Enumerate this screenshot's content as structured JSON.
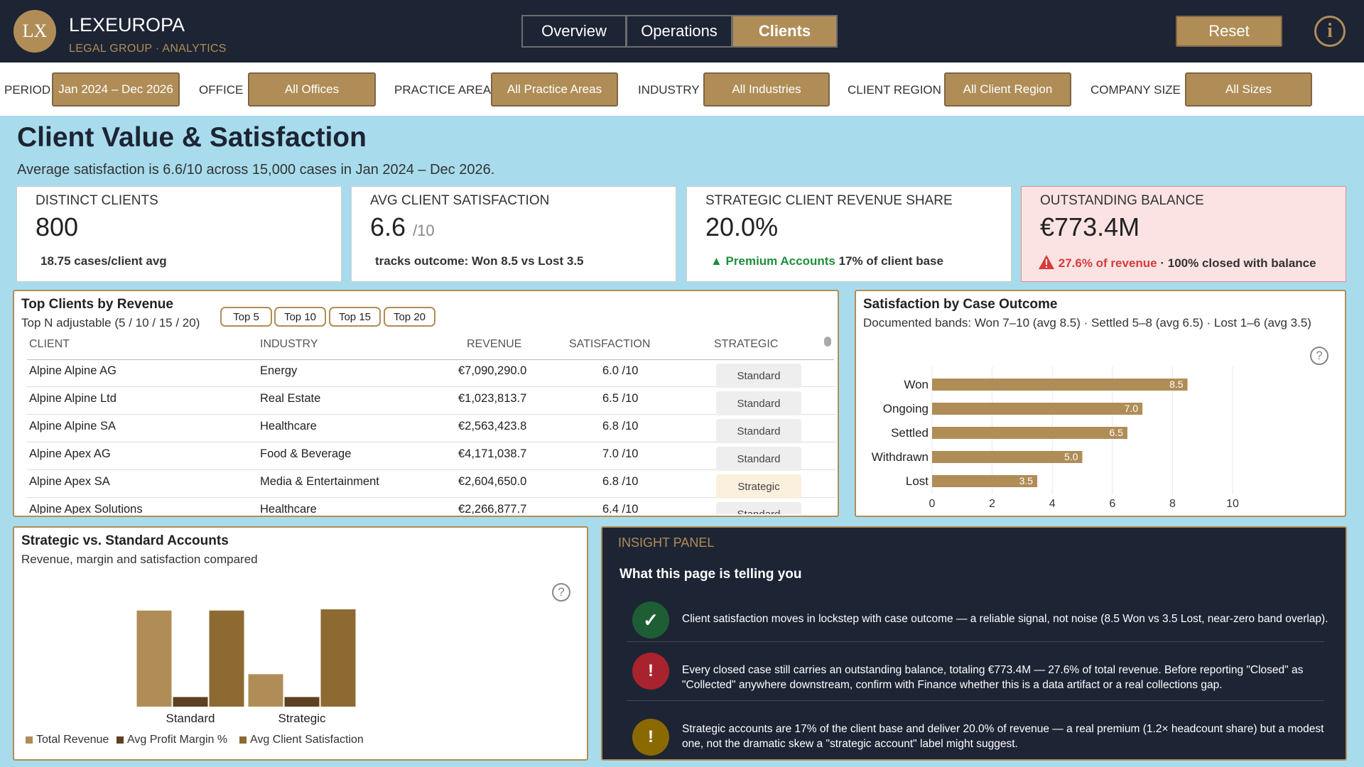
{
  "header": {
    "logo_text": "LX",
    "brand": "LEXEUROPA",
    "brand_sub": "LEGAL GROUP · ANALYTICS",
    "tabs": [
      {
        "label": "Overview"
      },
      {
        "label": "Operations"
      },
      {
        "label": "Clients",
        "active": true
      }
    ],
    "reset_label": "Reset",
    "info_glyph": "i"
  },
  "filters": [
    {
      "label": "PERIOD",
      "value": "Jan 2024 – Dec 2026"
    },
    {
      "label": "OFFICE",
      "value": "All Offices"
    },
    {
      "label": "PRACTICE AREA",
      "value": "All Practice Areas"
    },
    {
      "label": "INDUSTRY",
      "value": "All Industries"
    },
    {
      "label": "CLIENT REGION",
      "value": "All Client Region"
    },
    {
      "label": "COMPANY SIZE",
      "value": "All Sizes"
    }
  ],
  "page": {
    "title": "Client Value & Satisfaction",
    "subtitle": "Average satisfaction is 6.6/10 across 15,000 cases in Jan 2024 – Dec 2026."
  },
  "kpis": [
    {
      "label": "DISTINCT CLIENTS",
      "value": "800",
      "unit": "",
      "note": "18.75 cases/client avg"
    },
    {
      "label": "AVG CLIENT SATISFACTION",
      "value": "6.6",
      "unit": "/10",
      "note": "tracks outcome: Won 8.5 vs Lost 3.5"
    },
    {
      "label": "STRATEGIC CLIENT REVENUE SHARE",
      "value": "20.0%",
      "unit": "",
      "note_highlight": "▲ Premium Accounts",
      "note": "17% of client base"
    },
    {
      "label": "OUTSTANDING BALANCE",
      "value": "€773.4M",
      "unit": "",
      "note_highlight": "27.6% of revenue",
      "note": "· 100% closed with balance",
      "alert": true
    }
  ],
  "top_clients": {
    "title": "Top Clients by Revenue",
    "subtitle": "Top N adjustable (5 / 10 / 15 / 20)",
    "topn": [
      "Top 5",
      "Top 10",
      "Top 15",
      "Top 20"
    ],
    "columns": [
      "CLIENT",
      "INDUSTRY",
      "REVENUE",
      "SATISFACTION",
      "STRATEGIC"
    ],
    "rows": [
      {
        "client": "Alpine Alpine AG",
        "industry": "Energy",
        "revenue": "€7,090,290.0",
        "satisfaction": "6.0 /10",
        "strategic": "Standard"
      },
      {
        "client": "Alpine Alpine Ltd",
        "industry": "Real Estate",
        "revenue": "€1,023,813.7",
        "satisfaction": "6.5 /10",
        "strategic": "Standard"
      },
      {
        "client": "Alpine Alpine SA",
        "industry": "Healthcare",
        "revenue": "€2,563,423.8",
        "satisfaction": "6.8 /10",
        "strategic": "Standard"
      },
      {
        "client": "Alpine Apex AG",
        "industry": "Food & Beverage",
        "revenue": "€4,171,038.7",
        "satisfaction": "7.0 /10",
        "strategic": "Standard"
      },
      {
        "client": "Alpine Apex SA",
        "industry": "Media & Entertainment",
        "revenue": "€2,604,650.0",
        "satisfaction": "6.8 /10",
        "strategic": "Strategic"
      },
      {
        "client": "Alpine Apex Solutions",
        "industry": "Healthcare",
        "revenue": "€2,266,877.7",
        "satisfaction": "6.4 /10",
        "strategic": "Standard"
      }
    ]
  },
  "satisfaction_panel": {
    "title": "Satisfaction by Case Outcome",
    "subtitle": "Documented bands: Won 7–10 (avg 8.5) · Settled 5–8 (avg 6.5) · Lost 1–6 (avg 3.5)",
    "help_glyph": "?"
  },
  "strategic_panel": {
    "title": "Strategic vs. Standard Accounts",
    "subtitle": "Revenue, margin and satisfaction compared",
    "help_glyph": "?"
  },
  "chart_data": [
    {
      "type": "bar",
      "orientation": "horizontal",
      "categories": [
        "Won",
        "Ongoing",
        "Settled",
        "Withdrawn",
        "Lost"
      ],
      "values": [
        8.5,
        7.0,
        6.5,
        5.0,
        3.5
      ],
      "xlim": [
        0,
        10
      ],
      "xticks": [
        "0",
        "2",
        "4",
        "6",
        "8",
        "10"
      ],
      "color": "#b08d57",
      "data_labels": true
    },
    {
      "type": "bar",
      "categories": [
        "Standard",
        "Strategic"
      ],
      "series": [
        {
          "name": "Total Revenue",
          "values": [
            0.8,
            0.27
          ],
          "color": "#b08d57"
        },
        {
          "name": "Avg Profit Margin %",
          "values": [
            0.08,
            0.08
          ],
          "color": "#5e4120"
        },
        {
          "name": "Avg Client Satisfaction",
          "values": [
            0.8,
            0.81
          ],
          "color": "#8c6a32"
        }
      ],
      "y_axis_visible": false
    }
  ],
  "insight": {
    "label": "INSIGHT PANEL",
    "heading": "What this page is telling you",
    "items": [
      {
        "icon": "check-icon",
        "glyph": "✓",
        "color": "#1e5e34",
        "text": "Client satisfaction moves in lockstep with case outcome — a reliable signal, not noise (8.5 Won vs 3.5 Lost, near-zero band overlap)."
      },
      {
        "icon": "alert-icon",
        "glyph": "!",
        "color": "#a8232d",
        "text": "Every closed case still carries an outstanding balance, totaling €773.4M — 27.6% of total revenue. Before reporting \"Closed\" as \"Collected\" anywhere downstream, confirm with Finance whether this is a data artifact or a real collections gap."
      },
      {
        "icon": "info-alert-icon",
        "glyph": "!",
        "color": "#8a6a00",
        "text": "Strategic accounts are 17% of the client base and deliver 20.0% of revenue — a real premium (1.2× headcount share) but a modest one, not the dramatic skew a \"strategic account\" label might suggest."
      }
    ]
  }
}
